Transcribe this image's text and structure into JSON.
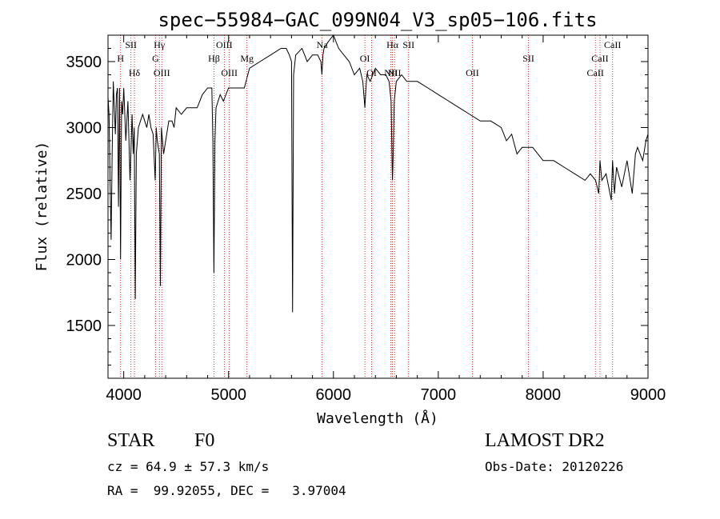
{
  "chart_data": {
    "type": "line",
    "title": "spec−55984−GAC_099N04_V3_sp05−106.fits",
    "xlabel": "Wavelength (Å)",
    "ylabel": "Flux (relative)",
    "xlim": [
      3850,
      9000
    ],
    "ylim": [
      1100,
      3700
    ],
    "xticks": [
      4000,
      5000,
      6000,
      7000,
      8000,
      9000
    ],
    "yticks": [
      1500,
      2000,
      2500,
      3000,
      3500
    ],
    "grid": false,
    "line_color": "#000000",
    "marker_color": "#cc0000",
    "series": [
      {
        "x": [
          3850,
          3860,
          3870,
          3880,
          3890,
          3900,
          3910,
          3920,
          3930,
          3940,
          3950,
          3960,
          3970,
          3980,
          3990,
          4000,
          4020,
          4040,
          4060,
          4080,
          4090,
          4100,
          4110,
          4120,
          4140,
          4160,
          4180,
          4200,
          4220,
          4240,
          4260,
          4280,
          4300,
          4310,
          4320,
          4340,
          4350,
          4360,
          4380,
          4400,
          4430,
          4460,
          4480,
          4500,
          4550,
          4600,
          4650,
          4700,
          4750,
          4800,
          4840,
          4850,
          4860,
          4870,
          4880,
          4900,
          4920,
          4950,
          5000,
          5050,
          5100,
          5150,
          5200,
          5300,
          5400,
          5500,
          5550,
          5580,
          5600,
          5610,
          5620,
          5640,
          5700,
          5750,
          5800,
          5850,
          5880,
          5890,
          5900,
          5910,
          5950,
          6000,
          6050,
          6100,
          6150,
          6200,
          6250,
          6280,
          6300,
          6310,
          6320,
          6350,
          6400,
          6450,
          6500,
          6530,
          6550,
          6560,
          6563,
          6570,
          6580,
          6600,
          6650,
          6700,
          6800,
          6900,
          7000,
          7100,
          7200,
          7300,
          7400,
          7500,
          7600,
          7650,
          7700,
          7750,
          7800,
          7900,
          8000,
          8100,
          8200,
          8300,
          8400,
          8450,
          8500,
          8530,
          8542,
          8560,
          8600,
          8650,
          8662,
          8680,
          8700,
          8750,
          8800,
          8850,
          8880,
          8900,
          8950,
          8980,
          9000
        ],
        "y": [
          3230,
          3100,
          2600,
          2150,
          2800,
          3350,
          3150,
          2950,
          3250,
          3300,
          2400,
          3300,
          2000,
          3200,
          3100,
          3300,
          2900,
          3200,
          2600,
          3100,
          2800,
          3000,
          1700,
          2800,
          3000,
          3050,
          3100,
          3050,
          3000,
          3100,
          3000,
          2950,
          2600,
          3000,
          2900,
          2800,
          1800,
          3000,
          2800,
          2900,
          3050,
          3050,
          3000,
          3150,
          3100,
          3150,
          3150,
          3150,
          3250,
          3300,
          3300,
          2900,
          1900,
          2900,
          3150,
          3200,
          3250,
          3200,
          3300,
          3300,
          3300,
          3300,
          3450,
          3500,
          3550,
          3600,
          3600,
          3550,
          3500,
          1600,
          3400,
          3550,
          3600,
          3500,
          3550,
          3550,
          3500,
          3400,
          3550,
          3600,
          3650,
          3700,
          3600,
          3550,
          3500,
          3400,
          3450,
          3350,
          3150,
          3300,
          3400,
          3350,
          3450,
          3400,
          3400,
          3350,
          3200,
          2700,
          2600,
          2800,
          3200,
          3350,
          3400,
          3350,
          3350,
          3300,
          3250,
          3200,
          3150,
          3100,
          3050,
          3050,
          3000,
          2900,
          2950,
          2800,
          2850,
          2850,
          2750,
          2750,
          2700,
          2650,
          2600,
          2650,
          2600,
          2500,
          2750,
          2600,
          2650,
          2450,
          2750,
          2500,
          2700,
          2550,
          2750,
          2500,
          2800,
          2850,
          2750,
          2900,
          2950
        ]
      }
    ],
    "lines": [
      {
        "wl": 3970,
        "label": "H",
        "row": 1
      },
      {
        "wl": 4069,
        "label": "SII",
        "row": 0
      },
      {
        "wl": 4102,
        "label": "Hδ",
        "row": 2
      },
      {
        "wl": 4304,
        "label": "G",
        "row": 1
      },
      {
        "wl": 4340,
        "label": "Hγ",
        "row": 0
      },
      {
        "wl": 4363,
        "label": "OIII",
        "row": 2
      },
      {
        "wl": 4861,
        "label": "Hβ",
        "row": 1
      },
      {
        "wl": 4959,
        "label": "OIII",
        "row": 0
      },
      {
        "wl": 5007,
        "label": "OIII",
        "row": 2
      },
      {
        "wl": 5175,
        "label": "Mg",
        "row": 1
      },
      {
        "wl": 5892,
        "label": "Na",
        "row": 0
      },
      {
        "wl": 6300,
        "label": "OI",
        "row": 1
      },
      {
        "wl": 6364,
        "label": "OI",
        "row": 2
      },
      {
        "wl": 6548,
        "label": "NII",
        "row": 2
      },
      {
        "wl": 6563,
        "label": "Hα",
        "row": 0
      },
      {
        "wl": 6583,
        "label": "NII",
        "row": 2
      },
      {
        "wl": 6717,
        "label": "SII",
        "row": 0
      },
      {
        "wl": 7325,
        "label": "OII",
        "row": 2
      },
      {
        "wl": 7860,
        "label": "SII",
        "row": 1
      },
      {
        "wl": 8498,
        "label": "CaII",
        "row": 2
      },
      {
        "wl": 8542,
        "label": "CaII",
        "row": 1
      },
      {
        "wl": 8662,
        "label": "CaII",
        "row": 0
      }
    ]
  },
  "footer": {
    "class": "STAR",
    "subclass": "F0",
    "survey": "LAMOST DR2",
    "cz": "cz = 64.9 ± 57.3 km/s",
    "obs_date": "Obs-Date: 20120226",
    "coords": "RA =  99.92055, DEC =   3.97004"
  }
}
